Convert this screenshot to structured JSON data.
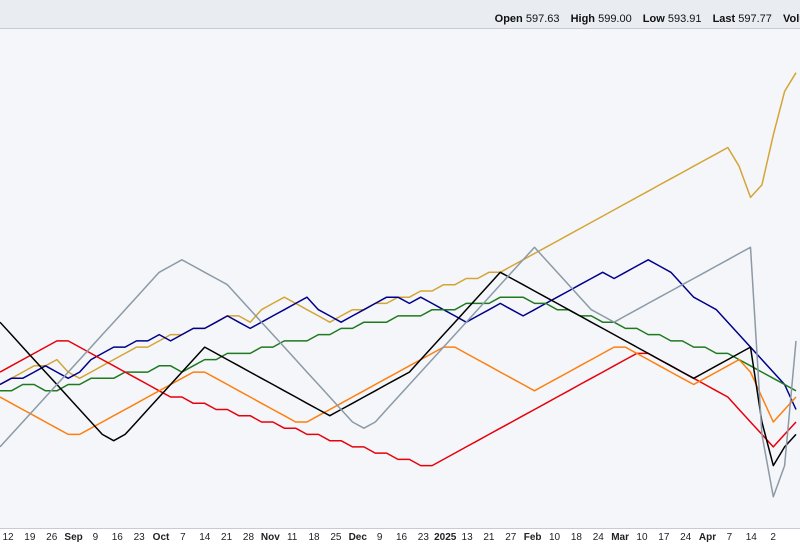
{
  "quote": {
    "open_label": "Open",
    "open": "597.63",
    "high_label": "High",
    "high": "599.00",
    "low_label": "Low",
    "low": "593.91",
    "last_label": "Last",
    "last": "597.77",
    "volume_label": "Volu"
  },
  "chart_data": {
    "type": "line",
    "title": "",
    "xlabel": "",
    "ylabel": "",
    "grid": false,
    "legend": "none",
    "x_ticks": [
      {
        "label": "12",
        "major": false
      },
      {
        "label": "19",
        "major": false
      },
      {
        "label": "26",
        "major": false
      },
      {
        "label": "Sep",
        "major": true
      },
      {
        "label": "9",
        "major": false
      },
      {
        "label": "16",
        "major": false
      },
      {
        "label": "23",
        "major": false
      },
      {
        "label": "Oct",
        "major": true
      },
      {
        "label": "7",
        "major": false
      },
      {
        "label": "14",
        "major": false
      },
      {
        "label": "21",
        "major": false
      },
      {
        "label": "28",
        "major": false
      },
      {
        "label": "Nov",
        "major": true
      },
      {
        "label": "11",
        "major": false
      },
      {
        "label": "18",
        "major": false
      },
      {
        "label": "25",
        "major": false
      },
      {
        "label": "Dec",
        "major": true
      },
      {
        "label": "9",
        "major": false
      },
      {
        "label": "16",
        "major": false
      },
      {
        "label": "23",
        "major": false
      },
      {
        "label": "2025",
        "major": true
      },
      {
        "label": "13",
        "major": false
      },
      {
        "label": "21",
        "major": false
      },
      {
        "label": "27",
        "major": false
      },
      {
        "label": "Feb",
        "major": true
      },
      {
        "label": "10",
        "major": false
      },
      {
        "label": "18",
        "major": false
      },
      {
        "label": "24",
        "major": false
      },
      {
        "label": "Mar",
        "major": true
      },
      {
        "label": "10",
        "major": false
      },
      {
        "label": "17",
        "major": false
      },
      {
        "label": "24",
        "major": false
      },
      {
        "label": "Apr",
        "major": true
      },
      {
        "label": "7",
        "major": false
      },
      {
        "label": "14",
        "major": false
      },
      {
        "label": "2",
        "major": false
      }
    ],
    "series": [
      {
        "color": "#d4a535",
        "values": [
          -2,
          -1,
          0,
          1,
          1,
          2,
          0,
          -1,
          0,
          1,
          2,
          3,
          4,
          4,
          5,
          6,
          6,
          7,
          7,
          8,
          9,
          9,
          8,
          10,
          11,
          12,
          11,
          10,
          9,
          8,
          9,
          10,
          10,
          11,
          11,
          12,
          12,
          13,
          13,
          14,
          14,
          15,
          15,
          16,
          16,
          17,
          18,
          19,
          20,
          21,
          22,
          23,
          24,
          25,
          26,
          27,
          28,
          29,
          30,
          31,
          32,
          33,
          34,
          35,
          36,
          33,
          28,
          30,
          38,
          45,
          48
        ]
      },
      {
        "color": "#00008b",
        "values": [
          -2,
          -1,
          -1,
          0,
          1,
          0,
          -1,
          0,
          2,
          3,
          4,
          4,
          5,
          5,
          6,
          5,
          6,
          7,
          7,
          8,
          9,
          8,
          7,
          8,
          9,
          10,
          11,
          12,
          10,
          9,
          8,
          9,
          10,
          11,
          12,
          12,
          11,
          12,
          11,
          10,
          9,
          8,
          9,
          10,
          11,
          10,
          9,
          10,
          11,
          12,
          13,
          14,
          15,
          16,
          15,
          16,
          17,
          18,
          17,
          16,
          14,
          12,
          11,
          10,
          8,
          6,
          4,
          2,
          0,
          -2,
          -6
        ]
      },
      {
        "color": "#1f7a1f",
        "values": [
          -3,
          -3,
          -2,
          -2,
          -3,
          -3,
          -2,
          -2,
          -1,
          -1,
          -1,
          0,
          0,
          0,
          1,
          1,
          0,
          1,
          2,
          2,
          3,
          3,
          3,
          4,
          4,
          5,
          5,
          5,
          6,
          6,
          7,
          7,
          8,
          8,
          8,
          9,
          9,
          9,
          10,
          10,
          10,
          11,
          11,
          11,
          12,
          12,
          12,
          11,
          11,
          10,
          10,
          9,
          9,
          8,
          8,
          7,
          7,
          6,
          6,
          5,
          5,
          4,
          4,
          3,
          3,
          2,
          1,
          0,
          -1,
          -2,
          -3
        ]
      },
      {
        "color": "#e8000b",
        "values": [
          0,
          1,
          2,
          3,
          4,
          5,
          5,
          4,
          3,
          2,
          1,
          0,
          -1,
          -2,
          -3,
          -4,
          -4,
          -5,
          -5,
          -6,
          -6,
          -7,
          -7,
          -8,
          -8,
          -9,
          -9,
          -10,
          -10,
          -11,
          -11,
          -12,
          -12,
          -13,
          -13,
          -14,
          -14,
          -15,
          -15,
          -14,
          -13,
          -12,
          -11,
          -10,
          -9,
          -8,
          -7,
          -6,
          -5,
          -4,
          -3,
          -2,
          -1,
          0,
          1,
          2,
          3,
          3,
          2,
          1,
          0,
          -1,
          -2,
          -3,
          -4,
          -6,
          -8,
          -10,
          -12,
          -10,
          -8
        ]
      },
      {
        "color": "#ff7f0e",
        "values": [
          -4,
          -5,
          -6,
          -7,
          -8,
          -9,
          -10,
          -10,
          -9,
          -8,
          -7,
          -6,
          -5,
          -4,
          -3,
          -2,
          -1,
          0,
          0,
          -1,
          -2,
          -3,
          -4,
          -5,
          -6,
          -7,
          -8,
          -8,
          -7,
          -6,
          -5,
          -4,
          -3,
          -2,
          -1,
          0,
          1,
          2,
          3,
          4,
          4,
          3,
          2,
          1,
          0,
          -1,
          -2,
          -3,
          -2,
          -1,
          0,
          1,
          2,
          3,
          4,
          4,
          3,
          2,
          1,
          0,
          -1,
          -2,
          -1,
          0,
          1,
          2,
          0,
          -4,
          -8,
          -6,
          -4
        ]
      },
      {
        "color": "#000000",
        "values": [
          8,
          6,
          4,
          2,
          0,
          -2,
          -4,
          -6,
          -8,
          -10,
          -11,
          -10,
          -8,
          -6,
          -4,
          -2,
          0,
          2,
          4,
          3,
          2,
          1,
          0,
          -1,
          -2,
          -3,
          -4,
          -5,
          -6,
          -7,
          -6,
          -5,
          -4,
          -3,
          -2,
          -1,
          0,
          2,
          4,
          6,
          8,
          10,
          12,
          14,
          16,
          15,
          14,
          13,
          12,
          11,
          10,
          9,
          8,
          7,
          6,
          5,
          4,
          3,
          2,
          1,
          0,
          -1,
          0,
          1,
          2,
          3,
          4,
          -8,
          -15,
          -12,
          -10
        ]
      },
      {
        "color": "#8c9aa6",
        "values": [
          -12,
          -10,
          -8,
          -6,
          -4,
          -2,
          0,
          2,
          4,
          6,
          8,
          10,
          12,
          14,
          16,
          17,
          18,
          17,
          16,
          15,
          14,
          12,
          10,
          8,
          6,
          4,
          2,
          0,
          -2,
          -4,
          -6,
          -8,
          -9,
          -8,
          -6,
          -4,
          -2,
          0,
          2,
          4,
          6,
          8,
          10,
          12,
          14,
          16,
          18,
          20,
          18,
          16,
          14,
          12,
          10,
          9,
          8,
          9,
          10,
          11,
          12,
          13,
          14,
          15,
          16,
          17,
          18,
          19,
          20,
          -10,
          -20,
          -15,
          5
        ]
      }
    ],
    "ylim": [
      -25,
      55
    ]
  }
}
